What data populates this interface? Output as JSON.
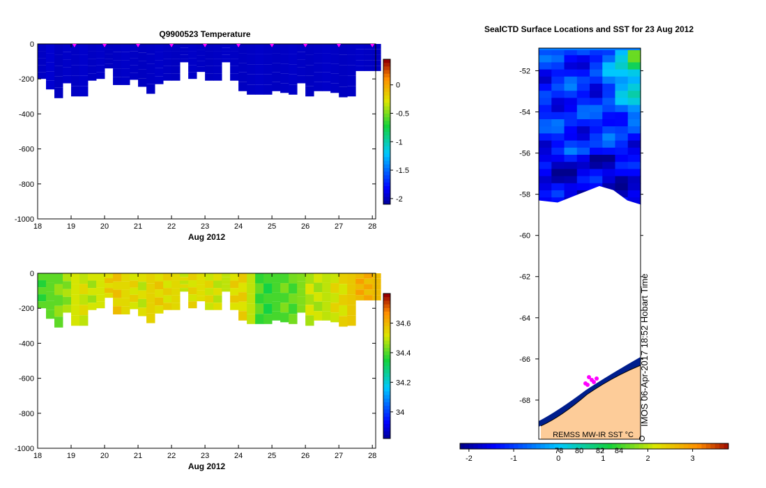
{
  "chart_data": [
    {
      "type": "heatmap",
      "title": "Q9900523  Temperature",
      "xlabel": "Aug 2012",
      "xlim": [
        18,
        28.1
      ],
      "xticks": [
        "18",
        "19",
        "20",
        "21",
        "22",
        "23",
        "24",
        "25",
        "26",
        "27",
        "28"
      ],
      "ylim": [
        -1000,
        0
      ],
      "yticks": [
        "0",
        "-200",
        "-400",
        "-600",
        "-800",
        "-1000"
      ],
      "colorbar": {
        "min": -2.1,
        "max": 0.45,
        "ticks": [
          "0",
          "-0.5",
          "-1",
          "-1.5",
          "-2"
        ],
        "tick_values": [
          0,
          -0.5,
          -1,
          -1.5,
          -2
        ]
      },
      "profile_markers": [
        19.1,
        20.0,
        21.0,
        22.0,
        23.0,
        24.0,
        25.0,
        26.0,
        27.0,
        28.0
      ],
      "profile_times": [
        18.0,
        18.25,
        18.5,
        18.75,
        19.0,
        19.25,
        19.5,
        19.75,
        20.0,
        20.25,
        20.5,
        20.75,
        21.0,
        21.25,
        21.5,
        21.75,
        22.0,
        22.25,
        22.5,
        22.75,
        23.0,
        23.25,
        23.5,
        23.75,
        24.0,
        24.25,
        24.5,
        24.75,
        25.0,
        25.25,
        25.5,
        25.75,
        26.0,
        26.25,
        26.5,
        26.75,
        27.0,
        27.25,
        27.5,
        27.75,
        28.0
      ],
      "profile_max_depth": [
        -200,
        -260,
        -310,
        -225,
        -300,
        -300,
        -210,
        -200,
        -140,
        -235,
        -235,
        -205,
        -245,
        -285,
        -230,
        -210,
        -210,
        -105,
        -200,
        -160,
        -210,
        -210,
        -105,
        -210,
        -270,
        -290,
        -290,
        -290,
        -270,
        -280,
        -290,
        -225,
        -300,
        -270,
        -270,
        -280,
        -305,
        -300,
        -155,
        -155,
        -155
      ],
      "surface_values": [
        -1.95,
        -1.92,
        -1.96,
        -1.94,
        -1.95,
        -1.93,
        -1.95,
        -1.94,
        -1.96,
        -1.95,
        -1.94,
        -1.95,
        -1.96,
        -1.95,
        -1.94,
        -1.95,
        -1.96,
        -1.95,
        -1.94,
        -1.95,
        -1.96,
        -1.95,
        -1.94,
        -1.95,
        -1.96,
        -1.95,
        -1.94,
        -1.95,
        -1.96,
        -1.95,
        -1.94,
        -1.95,
        -1.96,
        -1.95,
        -1.94,
        -1.95,
        -1.96,
        -1.95,
        -1.94,
        -1.95,
        -1.96
      ]
    },
    {
      "type": "heatmap",
      "title": "",
      "xlabel": "Aug 2012",
      "xlim": [
        18,
        28.1
      ],
      "xticks": [
        "18",
        "19",
        "20",
        "21",
        "22",
        "23",
        "24",
        "25",
        "26",
        "27",
        "28"
      ],
      "ylim": [
        -1000,
        0
      ],
      "yticks": [
        "0",
        "-200",
        "-400",
        "-600",
        "-800",
        "-1000"
      ],
      "colorbar": {
        "min": 33.82,
        "max": 34.8,
        "ticks": [
          "34.6",
          "34.4",
          "34.2",
          "34"
        ],
        "tick_values": [
          34.6,
          34.4,
          34.2,
          34.0
        ]
      },
      "profile_max_depth": [
        -200,
        -260,
        -310,
        -225,
        -300,
        -300,
        -210,
        -200,
        -140,
        -235,
        -235,
        -205,
        -245,
        -285,
        -230,
        -210,
        -210,
        -105,
        -200,
        -160,
        -210,
        -210,
        -105,
        -210,
        -270,
        -290,
        -290,
        -290,
        -270,
        -280,
        -290,
        -225,
        -300,
        -270,
        -270,
        -280,
        -305,
        -300,
        -155,
        -155,
        -155
      ],
      "surface_values": [
        34.4,
        34.42,
        34.44,
        34.47,
        34.52,
        34.52,
        34.5,
        34.52,
        34.56,
        34.58,
        34.55,
        34.54,
        34.52,
        34.56,
        34.56,
        34.55,
        34.55,
        34.52,
        34.55,
        34.54,
        34.53,
        34.52,
        34.5,
        34.55,
        34.56,
        34.5,
        34.4,
        34.38,
        34.4,
        34.42,
        34.42,
        34.45,
        34.5,
        34.5,
        34.5,
        34.53,
        34.55,
        34.58,
        34.62,
        34.62,
        34.6
      ]
    },
    {
      "type": "heatmap",
      "title": "SealCTD Surface Locations and SST for 23 Aug 2012",
      "yticks": [
        "-52",
        "-54",
        "-56",
        "-58",
        "-60",
        "-62",
        "-64",
        "-66",
        "-68"
      ],
      "ylim": [
        -69.9,
        -50.9
      ],
      "colorbar": {
        "min": -2.2,
        "max": 3.8,
        "ticks": [
          "-2",
          "-1",
          "0",
          "1",
          "2",
          "3"
        ],
        "tick_values": [
          -2,
          -1,
          0,
          1,
          2,
          3
        ],
        "overlay_labels": [
          "78",
          "80",
          "82",
          "84"
        ]
      },
      "annotations": [
        "REMSS MW-IR SST °C",
        "IMOS 06-Apr-2017 18:52 Hobart Time"
      ]
    }
  ]
}
